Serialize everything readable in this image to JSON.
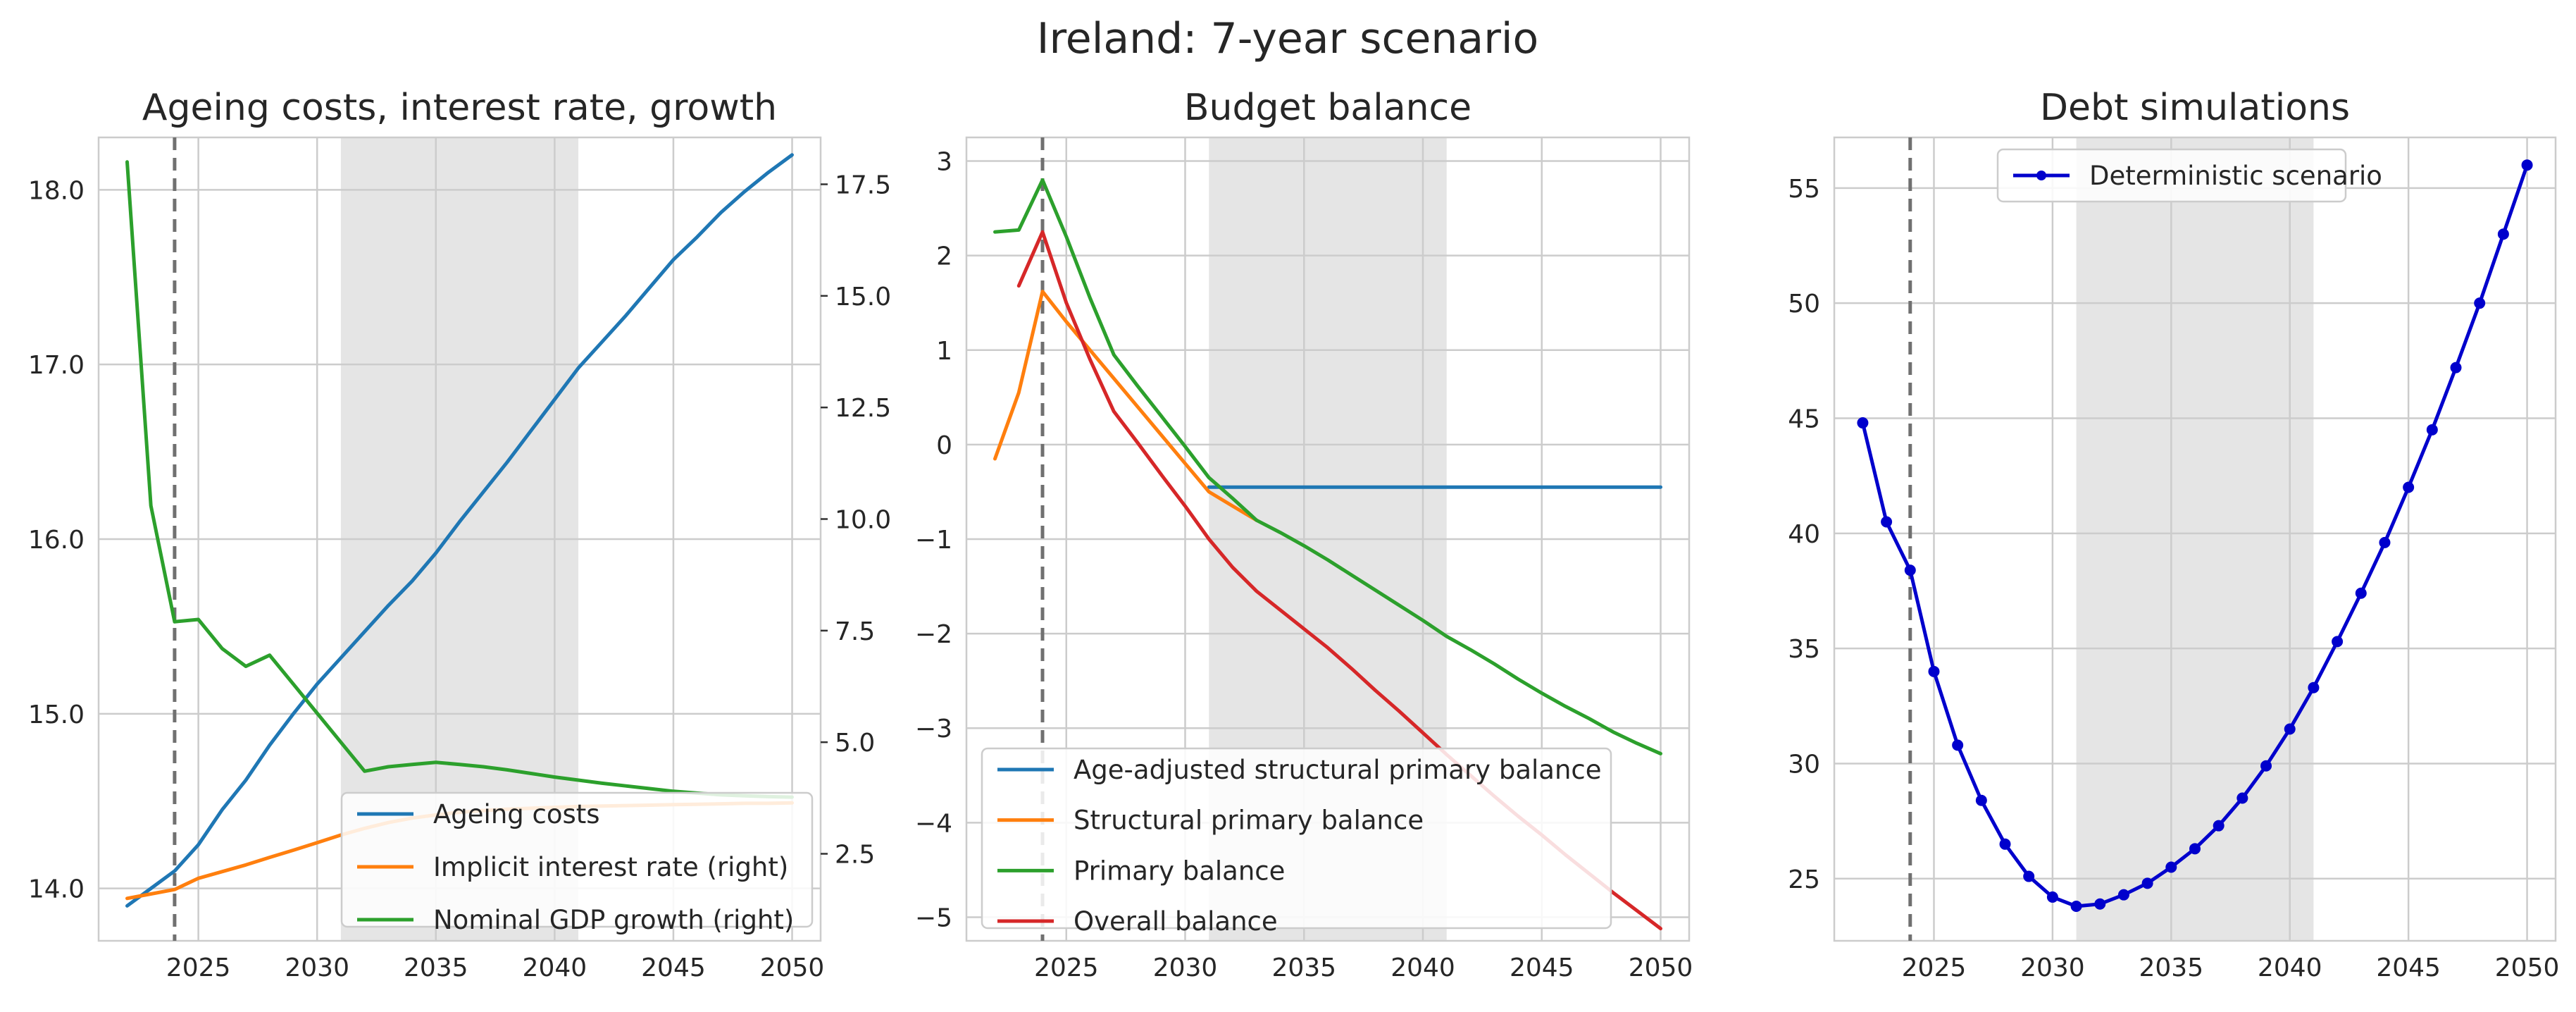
{
  "figure": {
    "title": "Ireland: 7-year scenario"
  },
  "colors": {
    "blue": "#1f77b4",
    "orange": "#ff7f0e",
    "green": "#2ca02c",
    "red": "#d62728",
    "debt": "#0000cc",
    "grid": "#cccccc",
    "shade": "#e5e5e5",
    "dashed": "#707070"
  },
  "chart_data": [
    {
      "type": "line",
      "title": "Ageing costs, interest rate, growth",
      "xlim": [
        2020.8,
        2051.2
      ],
      "ylim": [
        13.7,
        18.3
      ],
      "ylim_right": [
        0.55,
        18.55
      ],
      "x_ticks": [
        2025,
        2030,
        2035,
        2040,
        2045,
        2050
      ],
      "y_ticks": [
        14.0,
        15.0,
        16.0,
        17.0,
        18.0
      ],
      "y_tick_labels": [
        "14.0",
        "15.0",
        "16.0",
        "17.0",
        "18.0"
      ],
      "y_right_ticks": [
        2.5,
        5.0,
        7.5,
        10.0,
        12.5,
        15.0,
        17.5
      ],
      "y_right_tick_labels": [
        "2.5",
        "5.0",
        "7.5",
        "10.0",
        "12.5",
        "15.0",
        "17.5"
      ],
      "shaded_region": [
        2031,
        2041
      ],
      "vline": 2024,
      "legend_location": "lower right",
      "series": [
        {
          "name": "Ageing costs",
          "axis": "left",
          "color": "#1f77b4",
          "x": [
            2022,
            2023,
            2024,
            2025,
            2026,
            2027,
            2028,
            2029,
            2030,
            2031,
            2032,
            2033,
            2034,
            2035,
            2036,
            2037,
            2038,
            2039,
            2040,
            2041,
            2042,
            2043,
            2044,
            2045,
            2046,
            2047,
            2048,
            2049,
            2050
          ],
          "values": [
            13.9,
            14.0,
            14.1,
            14.25,
            14.45,
            14.62,
            14.82,
            15.0,
            15.17,
            15.32,
            15.47,
            15.62,
            15.76,
            15.92,
            16.1,
            16.27,
            16.44,
            16.62,
            16.8,
            16.98,
            17.13,
            17.28,
            17.44,
            17.6,
            17.73,
            17.87,
            17.99,
            18.1,
            18.2
          ]
        },
        {
          "name": "Implicit interest rate (right)",
          "axis": "right",
          "color": "#ff7f0e",
          "x": [
            2022,
            2023,
            2024,
            2025,
            2026,
            2027,
            2028,
            2029,
            2030,
            2031,
            2032,
            2033,
            2034,
            2035,
            2036,
            2037,
            2038,
            2039,
            2040,
            2041,
            2042,
            2043,
            2044,
            2045,
            2046,
            2047,
            2048,
            2049,
            2050
          ],
          "values": [
            1.5,
            1.6,
            1.7,
            1.95,
            2.1,
            2.25,
            2.42,
            2.58,
            2.75,
            2.92,
            3.07,
            3.2,
            3.3,
            3.37,
            3.43,
            3.47,
            3.5,
            3.52,
            3.54,
            3.56,
            3.57,
            3.58,
            3.59,
            3.6,
            3.61,
            3.62,
            3.63,
            3.63,
            3.64
          ]
        },
        {
          "name": "Nominal GDP growth (right)",
          "axis": "right",
          "color": "#2ca02c",
          "x": [
            2022,
            2023,
            2024,
            2025,
            2026,
            2027,
            2028,
            2029,
            2030,
            2031,
            2032,
            2033,
            2034,
            2035,
            2036,
            2037,
            2038,
            2039,
            2040,
            2041,
            2042,
            2043,
            2044,
            2045,
            2046,
            2047,
            2048,
            2049,
            2050
          ],
          "values": [
            18.0,
            10.3,
            7.7,
            7.75,
            7.1,
            6.7,
            6.95,
            6.3,
            5.65,
            5.0,
            4.35,
            4.45,
            4.5,
            4.55,
            4.5,
            4.45,
            4.38,
            4.3,
            4.22,
            4.15,
            4.08,
            4.02,
            3.96,
            3.9,
            3.86,
            3.82,
            3.8,
            3.78,
            3.77
          ]
        }
      ]
    },
    {
      "type": "line",
      "title": "Budget balance",
      "xlim": [
        2020.8,
        2051.2
      ],
      "ylim": [
        -5.25,
        3.25
      ],
      "x_ticks": [
        2025,
        2030,
        2035,
        2040,
        2045,
        2050
      ],
      "y_ticks": [
        -5,
        -4,
        -3,
        -2,
        -1,
        0,
        1,
        2,
        3
      ],
      "y_tick_labels": [
        "−5",
        "−4",
        "−3",
        "−2",
        "−1",
        "0",
        "1",
        "2",
        "3"
      ],
      "shaded_region": [
        2031,
        2041
      ],
      "vline": 2024,
      "legend_location": "lower left",
      "series": [
        {
          "name": "Age-adjusted structural primary balance",
          "color": "#1f77b4",
          "x": [
            2031,
            2032,
            2033,
            2034,
            2035,
            2036,
            2037,
            2038,
            2039,
            2040,
            2041,
            2042,
            2043,
            2044,
            2045,
            2046,
            2047,
            2048,
            2049,
            2050
          ],
          "values": [
            -0.45,
            -0.45,
            -0.45,
            -0.45,
            -0.45,
            -0.45,
            -0.45,
            -0.45,
            -0.45,
            -0.45,
            -0.45,
            -0.45,
            -0.45,
            -0.45,
            -0.45,
            -0.45,
            -0.45,
            -0.45,
            -0.45,
            -0.45
          ]
        },
        {
          "name": "Structural primary balance",
          "color": "#ff7f0e",
          "x": [
            2022,
            2023,
            2024,
            2025,
            2026,
            2027,
            2028,
            2029,
            2030,
            2031,
            2032,
            2033
          ],
          "values": [
            -0.15,
            0.55,
            1.62,
            1.3,
            1.0,
            0.7,
            0.4,
            0.1,
            -0.2,
            -0.5,
            -0.65,
            -0.8
          ]
        },
        {
          "name": "Primary balance",
          "color": "#2ca02c",
          "x": [
            2022,
            2023,
            2024,
            2025,
            2026,
            2027,
            2028,
            2029,
            2030,
            2031,
            2032,
            2033,
            2034,
            2035,
            2036,
            2037,
            2038,
            2039,
            2040,
            2041,
            2042,
            2043,
            2044,
            2045,
            2046,
            2047,
            2048,
            2049,
            2050
          ],
          "values": [
            2.25,
            2.27,
            2.8,
            2.2,
            1.55,
            0.95,
            0.62,
            0.3,
            -0.02,
            -0.35,
            -0.57,
            -0.8,
            -0.93,
            -1.07,
            -1.22,
            -1.38,
            -1.54,
            -1.7,
            -1.86,
            -2.03,
            -2.17,
            -2.32,
            -2.48,
            -2.63,
            -2.77,
            -2.9,
            -3.04,
            -3.16,
            -3.27
          ]
        },
        {
          "name": "Overall balance",
          "color": "#d62728",
          "x": [
            2023,
            2024,
            2025,
            2026,
            2027,
            2028,
            2029,
            2030,
            2031,
            2032,
            2033,
            2034,
            2035,
            2036,
            2037,
            2038,
            2039,
            2040,
            2041,
            2042,
            2043,
            2044,
            2045,
            2046,
            2047,
            2048,
            2049,
            2050
          ],
          "values": [
            1.68,
            2.25,
            1.5,
            0.9,
            0.35,
            0.02,
            -0.32,
            -0.65,
            -1.0,
            -1.3,
            -1.55,
            -1.75,
            -1.95,
            -2.15,
            -2.37,
            -2.6,
            -2.82,
            -3.05,
            -3.28,
            -3.5,
            -3.72,
            -3.93,
            -4.13,
            -4.34,
            -4.54,
            -4.74,
            -4.93,
            -5.12
          ]
        }
      ]
    },
    {
      "type": "line",
      "title": "Debt simulations",
      "xlim": [
        2020.8,
        2051.2
      ],
      "ylim": [
        22.3,
        57.2
      ],
      "x_ticks": [
        2025,
        2030,
        2035,
        2040,
        2045,
        2050
      ],
      "y_ticks": [
        25,
        30,
        35,
        40,
        45,
        50,
        55
      ],
      "y_tick_labels": [
        "25",
        "30",
        "35",
        "40",
        "45",
        "50",
        "55"
      ],
      "shaded_region": [
        2031,
        2041
      ],
      "vline": 2024,
      "legend_location": "upper center",
      "series": [
        {
          "name": "Deterministic scenario",
          "color": "#0000cc",
          "marker": "circle",
          "x": [
            2022,
            2023,
            2024,
            2025,
            2026,
            2027,
            2028,
            2029,
            2030,
            2031,
            2032,
            2033,
            2034,
            2035,
            2036,
            2037,
            2038,
            2039,
            2040,
            2041,
            2042,
            2043,
            2044,
            2045,
            2046,
            2047,
            2048,
            2049,
            2050
          ],
          "values": [
            44.8,
            40.5,
            38.4,
            34.0,
            30.8,
            28.4,
            26.5,
            25.1,
            24.2,
            23.8,
            23.9,
            24.3,
            24.8,
            25.5,
            26.3,
            27.3,
            28.5,
            29.9,
            31.5,
            33.3,
            35.3,
            37.4,
            39.6,
            42.0,
            44.5,
            47.2,
            50.0,
            53.0,
            56.0
          ]
        }
      ]
    }
  ]
}
